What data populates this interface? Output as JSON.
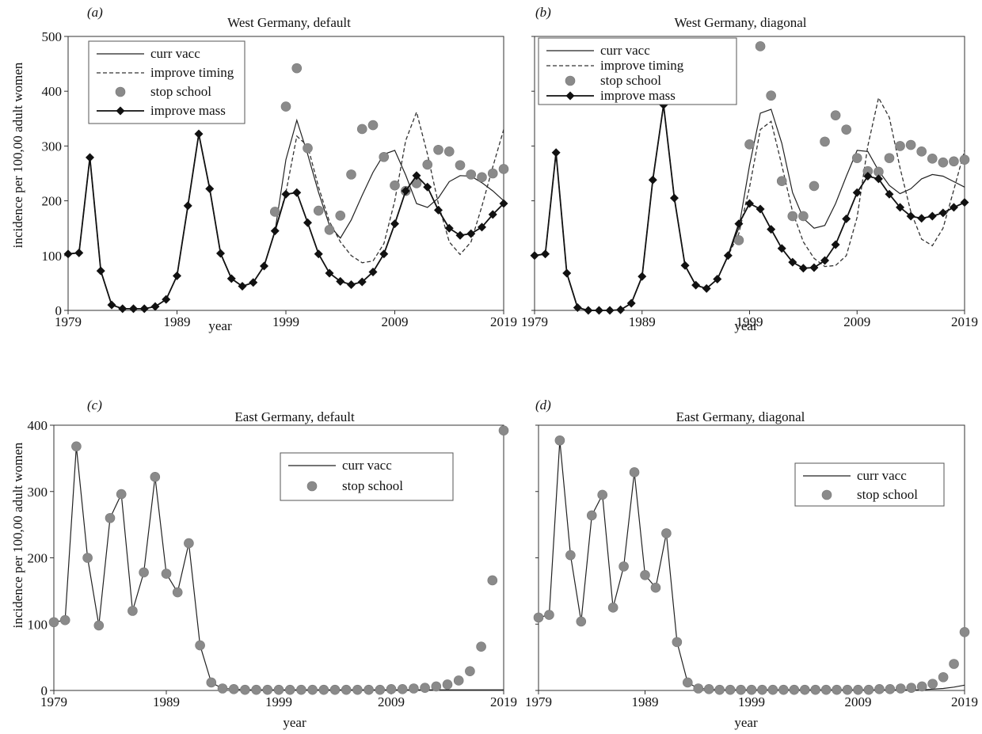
{
  "figure": {
    "ylabel": "incidence per 100,00 adult women",
    "xlabel": "year"
  },
  "chart_data": [
    {
      "type": "line",
      "panel": "(a)",
      "title": "West Germany, default",
      "xlabel": "year",
      "ylabel": "incidence per 100,00 adult women",
      "xlim": [
        1979,
        2019
      ],
      "ylim": [
        0,
        500
      ],
      "xticks": [
        1979,
        1989,
        1999,
        2009,
        2019
      ],
      "yticks": [
        0,
        100,
        200,
        300,
        400,
        500
      ],
      "grid": false,
      "legend": "top-left",
      "series": [
        {
          "name": "curr vacc",
          "style": "line-solid-thin",
          "x": [
            1979,
            1980,
            1981,
            1982,
            1983,
            1984,
            1985,
            1986,
            1987,
            1988,
            1989,
            1990,
            1991,
            1992,
            1993,
            1994,
            1995,
            1996,
            1997,
            1998,
            1999,
            2000,
            2001,
            2002,
            2003,
            2004,
            2005,
            2006,
            2007,
            2008,
            2009,
            2010,
            2011,
            2012,
            2013,
            2014,
            2015,
            2016,
            2017,
            2018,
            2019
          ],
          "y": [
            103,
            105,
            279,
            72,
            10,
            3,
            3,
            3,
            7,
            20,
            63,
            191,
            322,
            222,
            104,
            58,
            44,
            51,
            81,
            145,
            275,
            347,
            285,
            215,
            155,
            132,
            165,
            210,
            252,
            285,
            292,
            247,
            195,
            188,
            205,
            235,
            246,
            245,
            233,
            218,
            200
          ]
        },
        {
          "name": "improve timing",
          "style": "line-dashed",
          "x": [
            1979,
            1980,
            1981,
            1982,
            1983,
            1984,
            1985,
            1986,
            1987,
            1988,
            1989,
            1990,
            1991,
            1992,
            1993,
            1994,
            1995,
            1996,
            1997,
            1998,
            1999,
            2000,
            2001,
            2002,
            2003,
            2004,
            2005,
            2006,
            2007,
            2008,
            2009,
            2010,
            2011,
            2012,
            2013,
            2014,
            2015,
            2016,
            2017,
            2018,
            2019
          ],
          "y": [
            103,
            105,
            279,
            72,
            10,
            3,
            3,
            3,
            7,
            20,
            63,
            191,
            322,
            222,
            104,
            58,
            44,
            51,
            81,
            145,
            215,
            318,
            300,
            225,
            162,
            125,
            100,
            87,
            90,
            122,
            200,
            310,
            362,
            285,
            195,
            125,
            102,
            125,
            190,
            262,
            330
          ]
        },
        {
          "name": "stop school",
          "style": "dots-gray",
          "x": [
            1998,
            1999,
            2000,
            2001,
            2002,
            2003,
            2004,
            2005,
            2006,
            2007,
            2008,
            2009,
            2010,
            2011,
            2012,
            2013,
            2014,
            2015,
            2016,
            2017,
            2018,
            2019
          ],
          "y": [
            180,
            372,
            442,
            296,
            182,
            147,
            173,
            248,
            331,
            338,
            280,
            228,
            218,
            232,
            266,
            293,
            290,
            265,
            248,
            243,
            250,
            258
          ]
        },
        {
          "name": "improve mass",
          "style": "line-diamond",
          "x": [
            1979,
            1980,
            1981,
            1982,
            1983,
            1984,
            1985,
            1986,
            1987,
            1988,
            1989,
            1990,
            1991,
            1992,
            1993,
            1994,
            1995,
            1996,
            1997,
            1998,
            1999,
            2000,
            2001,
            2002,
            2003,
            2004,
            2005,
            2006,
            2007,
            2008,
            2009,
            2010,
            2011,
            2012,
            2013,
            2014,
            2015,
            2016,
            2017,
            2018,
            2019
          ],
          "y": [
            103,
            105,
            279,
            72,
            10,
            3,
            3,
            3,
            7,
            20,
            63,
            191,
            322,
            222,
            104,
            58,
            44,
            51,
            81,
            145,
            212,
            215,
            160,
            103,
            68,
            53,
            47,
            52,
            70,
            103,
            158,
            218,
            246,
            225,
            183,
            150,
            137,
            140,
            152,
            175,
            195
          ]
        }
      ]
    },
    {
      "type": "line",
      "panel": "(b)",
      "title": "West Germany, diagonal",
      "xlabel": "year",
      "xlim": [
        1979,
        2019
      ],
      "ylim": [
        0,
        500
      ],
      "xticks": [
        1979,
        1989,
        1999,
        2009,
        2019
      ],
      "grid": false,
      "legend": "top-left",
      "series": [
        {
          "name": "curr vacc",
          "style": "line-solid-thin",
          "x": [
            1979,
            1980,
            1981,
            1982,
            1983,
            1984,
            1985,
            1986,
            1987,
            1988,
            1989,
            1990,
            1991,
            1992,
            1993,
            1994,
            1995,
            1996,
            1997,
            1998,
            1999,
            2000,
            2001,
            2002,
            2003,
            2004,
            2005,
            2006,
            2007,
            2008,
            2009,
            2010,
            2011,
            2012,
            2013,
            2014,
            2015,
            2016,
            2017,
            2018,
            2019
          ],
          "y": [
            100,
            103,
            288,
            68,
            5,
            0,
            0,
            0,
            1,
            13,
            62,
            238,
            375,
            205,
            82,
            46,
            40,
            57,
            100,
            150,
            265,
            360,
            367,
            305,
            215,
            168,
            150,
            155,
            195,
            245,
            292,
            290,
            255,
            228,
            213,
            222,
            240,
            248,
            245,
            235,
            225
          ]
        },
        {
          "name": "improve timing",
          "style": "line-dashed",
          "x": [
            1979,
            1980,
            1981,
            1982,
            1983,
            1984,
            1985,
            1986,
            1987,
            1988,
            1989,
            1990,
            1991,
            1992,
            1993,
            1994,
            1995,
            1996,
            1997,
            1998,
            1999,
            2000,
            2001,
            2002,
            2003,
            2004,
            2005,
            2006,
            2007,
            2008,
            2009,
            2010,
            2011,
            2012,
            2013,
            2014,
            2015,
            2016,
            2017,
            2018,
            2019
          ],
          "y": [
            100,
            103,
            288,
            68,
            5,
            0,
            0,
            0,
            1,
            13,
            62,
            238,
            375,
            205,
            82,
            46,
            40,
            57,
            100,
            140,
            225,
            330,
            345,
            265,
            180,
            125,
            95,
            80,
            82,
            100,
            170,
            300,
            388,
            352,
            260,
            180,
            130,
            118,
            150,
            220,
            292
          ]
        },
        {
          "name": "stop school",
          "style": "dots-gray",
          "x": [
            1998,
            1999,
            2000,
            2001,
            2002,
            2003,
            2004,
            2005,
            2006,
            2007,
            2008,
            2009,
            2010,
            2011,
            2012,
            2013,
            2014,
            2015,
            2016,
            2017,
            2018,
            2019
          ],
          "y": [
            128,
            303,
            482,
            392,
            236,
            172,
            172,
            227,
            308,
            356,
            330,
            278,
            254,
            253,
            278,
            300,
            302,
            290,
            277,
            270,
            272,
            275
          ]
        },
        {
          "name": "improve mass",
          "style": "line-diamond",
          "x": [
            1979,
            1980,
            1981,
            1982,
            1983,
            1984,
            1985,
            1986,
            1987,
            1988,
            1989,
            1990,
            1991,
            1992,
            1993,
            1994,
            1995,
            1996,
            1997,
            1998,
            1999,
            2000,
            2001,
            2002,
            2003,
            2004,
            2005,
            2006,
            2007,
            2008,
            2009,
            2010,
            2011,
            2012,
            2013,
            2014,
            2015,
            2016,
            2017,
            2018,
            2019
          ],
          "y": [
            100,
            103,
            288,
            68,
            5,
            0,
            0,
            0,
            1,
            13,
            62,
            238,
            375,
            205,
            82,
            46,
            40,
            57,
            100,
            158,
            195,
            185,
            148,
            113,
            88,
            77,
            78,
            91,
            120,
            167,
            215,
            245,
            240,
            212,
            188,
            172,
            168,
            172,
            178,
            188,
            197
          ]
        }
      ]
    },
    {
      "type": "line",
      "panel": "(c)",
      "title": "East Germany, default",
      "xlabel": "year",
      "ylabel": "incidence per 100,00 adult women",
      "xlim": [
        1979,
        2019
      ],
      "ylim": [
        0,
        400
      ],
      "xticks": [
        1979,
        1989,
        1999,
        2009,
        2019
      ],
      "yticks": [
        0,
        100,
        200,
        300,
        400
      ],
      "grid": false,
      "legend": "top-right",
      "series": [
        {
          "name": "curr vacc",
          "style": "line-solid-thin",
          "x": [
            1979,
            1980,
            1981,
            1982,
            1983,
            1984,
            1985,
            1986,
            1987,
            1988,
            1989,
            1990,
            1991,
            1992,
            1993,
            1994,
            1995,
            1996,
            1997,
            1998,
            1999,
            2000,
            2001,
            2002,
            2003,
            2004,
            2005,
            2006,
            2007,
            2008,
            2009,
            2010,
            2011,
            2012,
            2013,
            2014,
            2015,
            2016,
            2017,
            2018,
            2019
          ],
          "y": [
            103,
            106,
            368,
            200,
            98,
            260,
            296,
            120,
            178,
            322,
            176,
            148,
            222,
            68,
            12,
            3,
            2,
            1,
            1,
            1,
            1,
            1,
            1,
            1,
            1,
            1,
            1,
            1,
            1,
            1,
            1,
            1,
            1,
            1,
            1,
            1,
            1,
            1,
            1,
            1,
            1
          ]
        },
        {
          "name": "stop school",
          "style": "dots-gray",
          "x": [
            1979,
            1980,
            1981,
            1982,
            1983,
            1984,
            1985,
            1986,
            1987,
            1988,
            1989,
            1990,
            1991,
            1992,
            1993,
            1994,
            1995,
            1996,
            1997,
            1998,
            1999,
            2000,
            2001,
            2002,
            2003,
            2004,
            2005,
            2006,
            2007,
            2008,
            2009,
            2010,
            2011,
            2012,
            2013,
            2014,
            2015,
            2016,
            2017,
            2018,
            2019
          ],
          "y": [
            103,
            106,
            368,
            200,
            98,
            260,
            296,
            120,
            178,
            322,
            176,
            148,
            222,
            68,
            12,
            3,
            2,
            1,
            1,
            1,
            1,
            1,
            1,
            1,
            1,
            1,
            1,
            1,
            1,
            1,
            2,
            2,
            3,
            4,
            6,
            9,
            15,
            29,
            66,
            166,
            392
          ]
        }
      ]
    },
    {
      "type": "line",
      "panel": "(d)",
      "title": "East Germany, diagonal",
      "xlabel": "year",
      "xlim": [
        1979,
        2019
      ],
      "ylim": [
        0,
        400
      ],
      "xticks": [
        1979,
        1989,
        1999,
        2009,
        2019
      ],
      "grid": false,
      "legend": "top-right",
      "series": [
        {
          "name": "curr vacc",
          "style": "line-solid-thin",
          "x": [
            1979,
            1980,
            1981,
            1982,
            1983,
            1984,
            1985,
            1986,
            1987,
            1988,
            1989,
            1990,
            1991,
            1992,
            1993,
            1994,
            1995,
            1996,
            1997,
            1998,
            1999,
            2000,
            2001,
            2002,
            2003,
            2004,
            2005,
            2006,
            2007,
            2008,
            2009,
            2010,
            2011,
            2012,
            2013,
            2014,
            2015,
            2016,
            2017,
            2018,
            2019
          ],
          "y": [
            110,
            114,
            377,
            204,
            104,
            264,
            295,
            125,
            187,
            329,
            174,
            155,
            237,
            73,
            12,
            3,
            2,
            1,
            1,
            1,
            1,
            1,
            1,
            1,
            1,
            1,
            1,
            1,
            1,
            1,
            1,
            1,
            1,
            1,
            1,
            1,
            1,
            2,
            3,
            5,
            8
          ]
        },
        {
          "name": "stop school",
          "style": "dots-gray",
          "x": [
            1979,
            1980,
            1981,
            1982,
            1983,
            1984,
            1985,
            1986,
            1987,
            1988,
            1989,
            1990,
            1991,
            1992,
            1993,
            1994,
            1995,
            1996,
            1997,
            1998,
            1999,
            2000,
            2001,
            2002,
            2003,
            2004,
            2005,
            2006,
            2007,
            2008,
            2009,
            2010,
            2011,
            2012,
            2013,
            2014,
            2015,
            2016,
            2017,
            2018,
            2019
          ],
          "y": [
            110,
            114,
            377,
            204,
            104,
            264,
            295,
            125,
            187,
            329,
            174,
            155,
            237,
            73,
            12,
            3,
            2,
            1,
            1,
            1,
            1,
            1,
            1,
            1,
            1,
            1,
            1,
            1,
            1,
            1,
            1,
            1,
            2,
            2,
            3,
            4,
            6,
            10,
            20,
            40,
            88
          ]
        }
      ]
    }
  ]
}
